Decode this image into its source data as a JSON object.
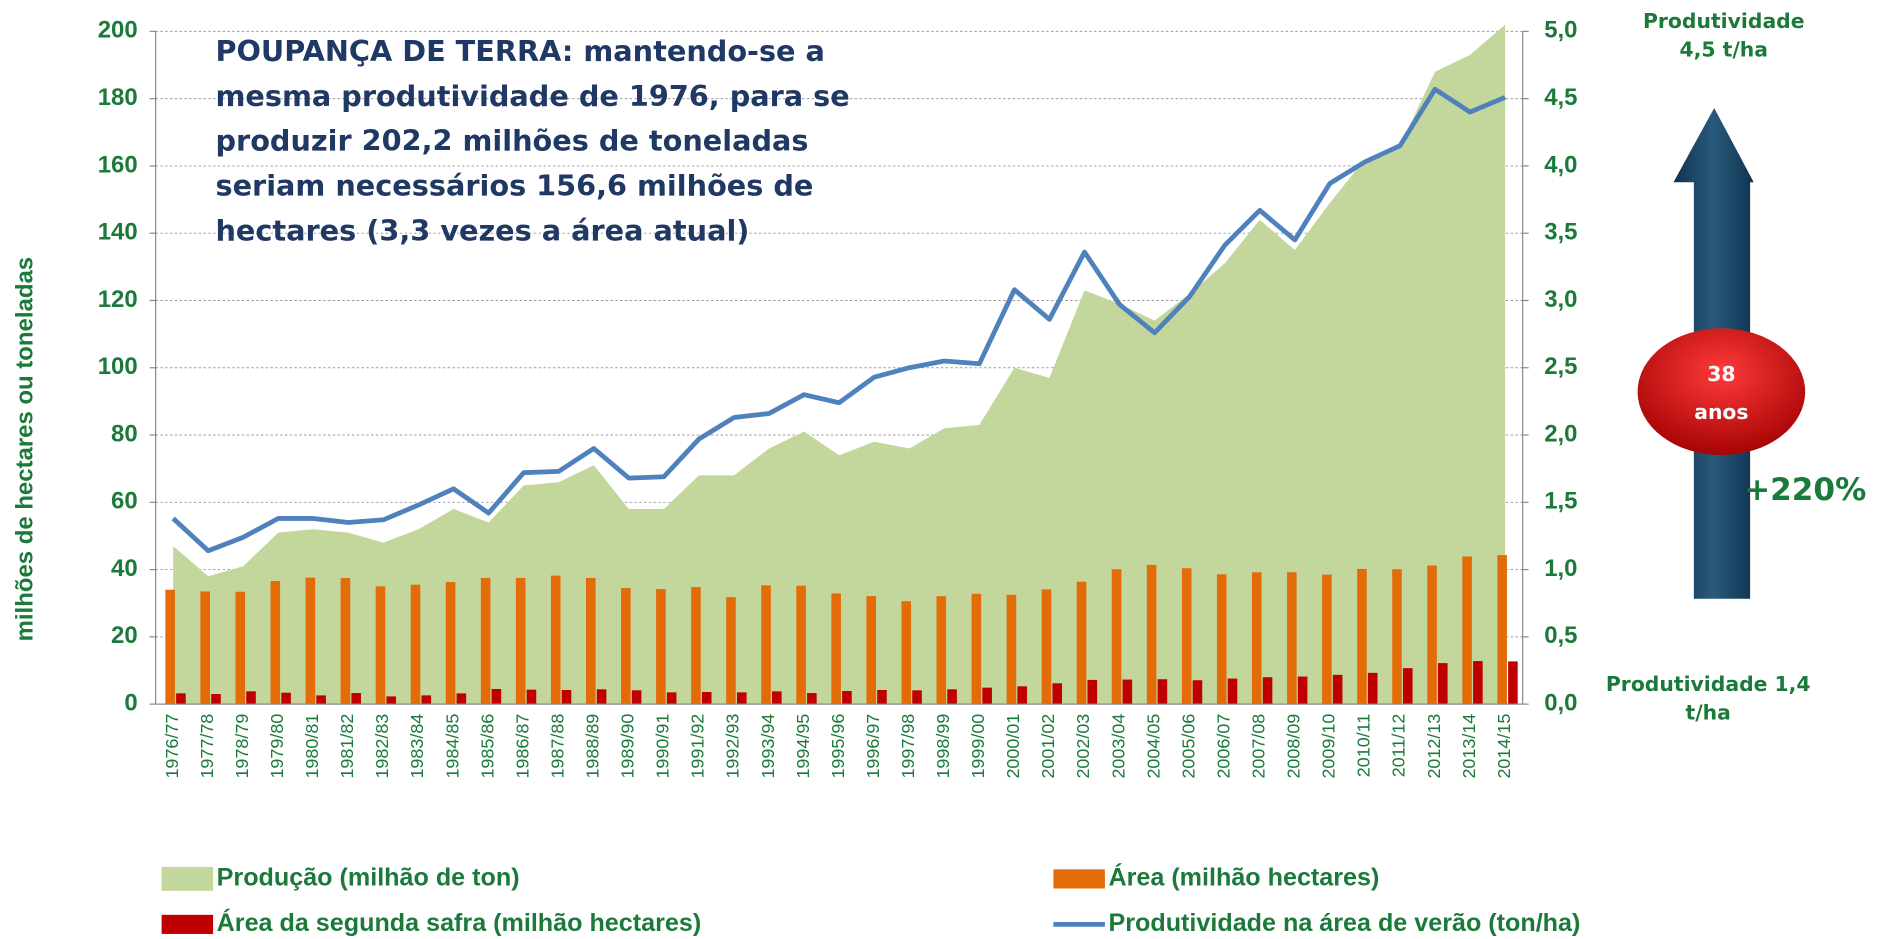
{
  "chart_data": {
    "type": "combo",
    "y_label": "milhões de hectares ou toneladas",
    "annotation": [
      "POUPANÇA DE TERRA: mantendo-se a",
      "mesma produtividade de 1976,  para se",
      "produzir 202,2 milhões de toneladas",
      "seriam necessários 156,6  milhões de",
      "hectares (3,3 vezes a área atual)"
    ],
    "side_top": [
      "Produtividade",
      "4,5 t/ha"
    ],
    "badge": [
      "38",
      "anos"
    ],
    "change": "+220%",
    "side_bottom": [
      "Produtividade 1,4",
      "t/ha"
    ],
    "categories": [
      "1976/77",
      "1977/78",
      "1978/79",
      "1979/80",
      "1980/81",
      "1981/82",
      "1982/83",
      "1983/84",
      "1984/85",
      "1985/86",
      "1986/87",
      "1987/88",
      "1988/89",
      "1989/90",
      "1990/91",
      "1991/92",
      "1992/93",
      "1993/94",
      "1994/95",
      "1995/96",
      "1996/97",
      "1997/98",
      "1998/99",
      "1999/00",
      "2000/01",
      "2001/02",
      "2002/03",
      "2003/04",
      "2004/05",
      "2005/06",
      "2006/07",
      "2007/08",
      "2008/09",
      "2009/10",
      "2010/11",
      "2011/12",
      "2012/13",
      "2013/14",
      "2014/15"
    ],
    "series": [
      {
        "name": "Produção (milhão de ton)",
        "kind": "area",
        "color": "#c3d69b",
        "values": [
          47,
          38,
          41,
          51,
          52,
          51,
          48,
          52,
          58,
          54,
          65,
          66,
          71,
          58,
          58,
          68,
          68,
          76,
          81,
          74,
          78,
          76,
          82,
          83,
          100,
          97,
          123,
          119,
          114,
          122,
          131,
          144,
          135,
          149,
          162,
          166,
          188,
          193,
          202
        ]
      },
      {
        "name": "Área (milhão hectares)",
        "kind": "bar",
        "color": "#e36c09",
        "values": [
          34,
          33.5,
          33.4,
          36.6,
          37.6,
          37.5,
          35,
          35.5,
          36.3,
          37.5,
          37.5,
          38.2,
          37.5,
          34.5,
          34.2,
          34.8,
          31.8,
          35.3,
          35.2,
          32.9,
          32.1,
          30.6,
          32.1,
          32.8,
          32.5,
          34.1,
          36.4,
          40.1,
          41.4,
          40.4,
          38.6,
          39.2,
          39.2,
          38.5,
          40.2,
          40.1,
          41.2,
          43.9,
          44.3
        ]
      },
      {
        "name": "Área da segunda safra (milhão hectares)",
        "kind": "bar",
        "color": "#c00000",
        "values": [
          3.2,
          3,
          3.8,
          3.4,
          2.6,
          3.3,
          2.3,
          2.6,
          3.2,
          4.5,
          4.3,
          4.2,
          4.4,
          4.1,
          3.5,
          3.6,
          3.5,
          3.8,
          3.3,
          3.9,
          4.2,
          4.1,
          4.4,
          4.9,
          5.3,
          6.2,
          7.2,
          7.3,
          7.4,
          7.1,
          7.6,
          8,
          8.2,
          8.7,
          9.3,
          10.7,
          12.2,
          12.8,
          12.7
        ]
      },
      {
        "name": "Produtividade na área de verão (ton/ha)",
        "kind": "line",
        "axis": "y2",
        "color": "#4f81bd",
        "values": [
          1.38,
          1.14,
          1.24,
          1.38,
          1.38,
          1.35,
          1.37,
          1.48,
          1.6,
          1.42,
          1.72,
          1.73,
          1.9,
          1.68,
          1.69,
          1.97,
          2.13,
          2.16,
          2.3,
          2.24,
          2.43,
          2.5,
          2.55,
          2.53,
          3.08,
          2.86,
          3.36,
          2.97,
          2.76,
          3.03,
          3.41,
          3.67,
          3.45,
          3.87,
          4.03,
          4.15,
          4.57,
          4.4,
          4.51
        ]
      }
    ],
    "ylim": [
      0,
      200
    ],
    "yticks": [
      0,
      20,
      40,
      60,
      80,
      100,
      120,
      140,
      160,
      180,
      200
    ],
    "y2lim": [
      0,
      5
    ],
    "y2ticks": [
      {
        "value": 0,
        "label": "0,0"
      },
      {
        "value": 0.5,
        "label": "0,5"
      },
      {
        "value": 1,
        "label": "1,0"
      },
      {
        "value": 1.5,
        "label": "1,5"
      },
      {
        "value": 2,
        "label": "2,0"
      },
      {
        "value": 2.5,
        "label": "2,5"
      },
      {
        "value": 3,
        "label": "3,0"
      },
      {
        "value": 3.5,
        "label": "3,5"
      },
      {
        "value": 4,
        "label": "4,0"
      },
      {
        "value": 4.5,
        "label": "4,5"
      },
      {
        "value": 5,
        "label": "5,0"
      }
    ],
    "grid": true
  }
}
